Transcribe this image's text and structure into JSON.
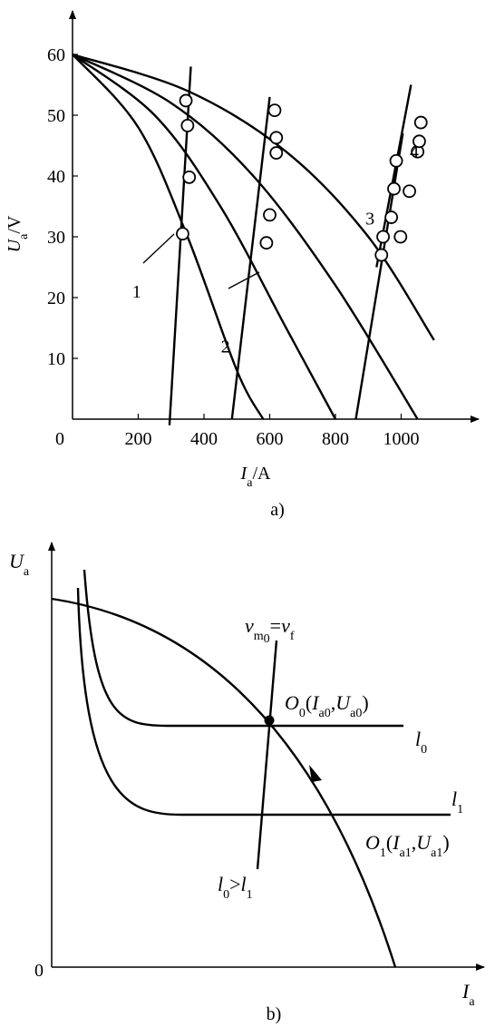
{
  "chart_data": [
    {
      "type": "scatter",
      "panel_label": "a)",
      "xlabel": {
        "base": "I",
        "sub": "a",
        "suffix": "/A"
      },
      "ylabel": {
        "base": "U",
        "sub": "a",
        "suffix": "/V"
      },
      "origin_label": "0",
      "xlim": [
        0,
        1150
      ],
      "ylim": [
        0,
        60
      ],
      "xticks": [
        200,
        400,
        600,
        800,
        1000
      ],
      "yticks": [
        10,
        20,
        30,
        40,
        50,
        60
      ],
      "grid": false,
      "curves": [
        {
          "name": "",
          "points": [
            [
              0,
              60
            ],
            [
              200,
              48
            ],
            [
              350,
              30
            ],
            [
              500,
              8
            ],
            [
              580,
              0
            ]
          ]
        },
        {
          "name": "",
          "points": [
            [
              0,
              60
            ],
            [
              250,
              50
            ],
            [
              450,
              35
            ],
            [
              650,
              15
            ],
            [
              800,
              0
            ]
          ]
        },
        {
          "name": "",
          "points": [
            [
              0,
              60
            ],
            [
              300,
              52
            ],
            [
              550,
              40
            ],
            [
              800,
              22
            ],
            [
              1050,
              0
            ]
          ]
        },
        {
          "name": "",
          "points": [
            [
              0,
              60
            ],
            [
              350,
              54
            ],
            [
              650,
              44
            ],
            [
              900,
              30
            ],
            [
              1100,
              13
            ]
          ]
        }
      ],
      "fit_lines": [
        {
          "name": "1",
          "from": [
            295,
            -1
          ],
          "to": [
            360,
            58
          ]
        },
        {
          "name": "2",
          "from": [
            485,
            0
          ],
          "to": [
            600,
            53
          ]
        },
        {
          "name": "3",
          "from": [
            862,
            0
          ],
          "to": [
            1005,
            47
          ]
        },
        {
          "name": "4",
          "from": [
            925,
            25
          ],
          "to": [
            1030,
            55
          ]
        }
      ],
      "series": [
        {
          "name": "1",
          "x": [
            345,
            350,
            355,
            335
          ],
          "y": [
            52.4,
            48.3,
            39.8,
            30.5
          ]
        },
        {
          "name": "2",
          "x": [
            615,
            620,
            620,
            600,
            590
          ],
          "y": [
            50.8,
            46.3,
            43.8,
            33.6,
            29.0
          ]
        },
        {
          "name": "3",
          "x": [
            940,
            945,
            970,
            978,
            985
          ],
          "y": [
            27.0,
            30.0,
            33.2,
            37.9,
            42.5
          ]
        },
        {
          "name": "4",
          "x": [
            998,
            1025,
            1050,
            1060,
            1055
          ],
          "y": [
            30.0,
            37.5,
            44.0,
            48.8,
            45.7
          ]
        }
      ],
      "labels": [
        {
          "text": "1",
          "x": 195,
          "y": 20
        },
        {
          "text": "2",
          "x": 465,
          "y": 11
        },
        {
          "text": "3",
          "x": 905,
          "y": 32
        },
        {
          "text": "4",
          "x": 1040,
          "y": 43
        }
      ]
    },
    {
      "type": "line",
      "panel_label": "b)",
      "xlabel": {
        "base": "I",
        "sub": "a"
      },
      "ylabel": {
        "base": "U",
        "sub": "a"
      },
      "origin_label": "0",
      "annotations": {
        "speed_label": {
          "v": "v",
          "m": "m",
          "zero": "0",
          "eq": "=",
          "vf": "v",
          "f": "f"
        },
        "o0_label": {
          "O": "O",
          "zero": "0",
          "I": "I",
          "a0": "a0",
          "U": "U"
        },
        "o1_label": {
          "O": "O",
          "one": "1",
          "I": "I",
          "a1": "a1",
          "U": "U"
        },
        "l0_label": {
          "l": "l",
          "zero": "0"
        },
        "l1_label": {
          "l": "l",
          "one": "1"
        },
        "compare_label": {
          "l": "l",
          "zero": "0",
          "gt": ">",
          "one": "1"
        }
      }
    }
  ]
}
